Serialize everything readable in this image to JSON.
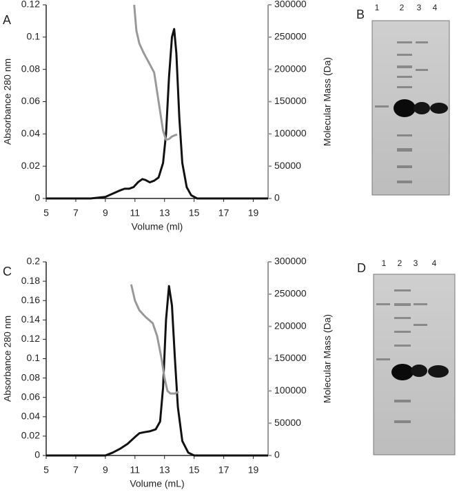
{
  "chart_data": [
    {
      "type": "line",
      "panel": "A",
      "xlabel": "Volume (ml)",
      "ylabel": "Absorbance 280 nm",
      "y2label": "Molecular Mass (Da)",
      "xlim": [
        5,
        20
      ],
      "xticks": [
        5,
        7,
        9,
        11,
        13,
        15,
        17,
        19
      ],
      "ylim": [
        0,
        0.12
      ],
      "yticks": [
        0,
        0.02,
        0.04,
        0.06,
        0.08,
        0.1,
        0.12
      ],
      "y2lim": [
        0,
        300000
      ],
      "y2ticks": [
        0,
        50000,
        100000,
        150000,
        200000,
        250000,
        300000
      ],
      "series": [
        {
          "color": "#111111",
          "x": [
            5,
            8,
            9,
            9.5,
            10,
            10.3,
            10.6,
            10.9,
            11.2,
            11.5,
            11.7,
            12,
            12.3,
            12.6,
            12.9,
            13.1,
            13.3,
            13.5,
            13.65,
            13.8,
            14,
            14.2,
            14.5,
            14.8,
            15.2,
            16,
            20
          ],
          "values": [
            0,
            0,
            0.001,
            0.003,
            0.005,
            0.006,
            0.006,
            0.007,
            0.01,
            0.012,
            0.0115,
            0.01,
            0.011,
            0.013,
            0.022,
            0.04,
            0.075,
            0.1,
            0.105,
            0.09,
            0.05,
            0.022,
            0.007,
            0.002,
            0,
            0,
            0
          ]
        },
        {
          "color": "#999999",
          "axis": "y2",
          "x": [
            10.95,
            11.1,
            11.3,
            11.6,
            12,
            12.3,
            12.5,
            12.7,
            12.9,
            13.1,
            13.3,
            13.5,
            13.7,
            13.85
          ],
          "values": [
            300000,
            260000,
            240000,
            225000,
            208000,
            195000,
            165000,
            135000,
            105000,
            91000,
            92000,
            96000,
            98000,
            99000
          ]
        }
      ]
    },
    {
      "type": "line",
      "panel": "C",
      "xlabel": "Volume (mL)",
      "ylabel": "Absorbance 280 nm",
      "y2label": "Molecular Mass (Da)",
      "xlim": [
        5,
        20
      ],
      "xticks": [
        5,
        7,
        9,
        11,
        13,
        15,
        17,
        19
      ],
      "ylim": [
        0,
        0.2
      ],
      "yticks": [
        0,
        0.02,
        0.04,
        0.06,
        0.08,
        0.1,
        0.12,
        0.14,
        0.16,
        0.18,
        0.2
      ],
      "y2lim": [
        0,
        300000
      ],
      "y2ticks": [
        0,
        50000,
        100000,
        150000,
        200000,
        250000,
        300000
      ],
      "series": [
        {
          "color": "#111111",
          "x": [
            5,
            9,
            9.5,
            10,
            10.5,
            11,
            11.3,
            11.6,
            12,
            12.4,
            12.7,
            12.9,
            13.1,
            13.3,
            13.5,
            13.7,
            13.9,
            14.2,
            14.6,
            15,
            20
          ],
          "values": [
            0,
            0,
            0.003,
            0.007,
            0.012,
            0.019,
            0.023,
            0.024,
            0.025,
            0.027,
            0.035,
            0.07,
            0.14,
            0.175,
            0.155,
            0.1,
            0.05,
            0.015,
            0.003,
            0,
            0
          ]
        },
        {
          "color": "#999999",
          "axis": "y2",
          "x": [
            10.75,
            11,
            11.3,
            11.7,
            12.2,
            12.5,
            12.8,
            13.0,
            13.2,
            13.4,
            13.7,
            13.95
          ],
          "values": [
            265000,
            240000,
            225000,
            215000,
            205000,
            185000,
            150000,
            120000,
            100000,
            96000,
            96000,
            99000
          ]
        }
      ]
    }
  ],
  "gels": [
    {
      "panel": "B",
      "lanes": [
        "1",
        "2",
        "3",
        "4"
      ]
    },
    {
      "panel": "D",
      "lanes": [
        "1",
        "2",
        "3",
        "4"
      ]
    }
  ]
}
